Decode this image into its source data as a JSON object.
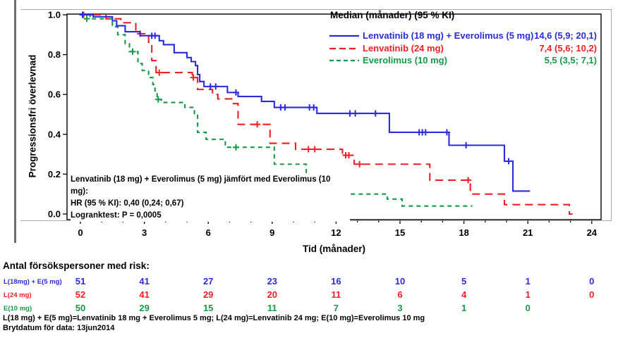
{
  "colors": {
    "blue": "#2b2bd9",
    "red": "#ee2024",
    "green": "#16994a",
    "axis": "#000000",
    "border_gray": "#a9a9a9",
    "left_bar_gray": "#6f6f6f"
  },
  "legend": {
    "title": "Median (månader) (95 % KI)",
    "entries": [
      {
        "label": "Lenvatinib (18 mg) + Everolimus (5 mg)",
        "value": "14,6 (5,9; 20,1)",
        "color": "blue",
        "dash": ""
      },
      {
        "label": "Lenvatinib (24 mg)",
        "value": "7,4 (5,6; 10,2)",
        "color": "red",
        "dash": "9,5"
      },
      {
        "label": "Everolimus (10 mg)",
        "value": "5,5 (3,5; 7,1)",
        "color": "green",
        "dash": "6,4"
      }
    ]
  },
  "annotation": {
    "line1": "Lenvatinib (18  mg) + Everolimus (5  mg) jämfört med Everolimus (10  mg):",
    "line2": "HR (95  % KI): 0,40 (0,24; 0,67)",
    "line3": "Logranktest: P = 0,0005"
  },
  "axes": {
    "x_label": "Tid (månader)",
    "y_label": "Progressionsfri överlevnad",
    "x_ticks": [
      "0",
      "3",
      "6",
      "9",
      "12",
      "15",
      "18",
      "21",
      "24"
    ],
    "y_ticks": [
      "0.0",
      "0.2",
      "0.4",
      "0.6",
      "0.8",
      "1.0"
    ],
    "xlim": [
      0,
      24
    ],
    "ylim": [
      0,
      1
    ]
  },
  "chart_data": {
    "type": "line",
    "subtype": "kaplan-meier-step",
    "title": "Median (månader) (95 % KI)",
    "xlabel": "Tid (månader)",
    "ylabel": "Progressionsfri överlevnad",
    "xlim": [
      0,
      24
    ],
    "ylim": [
      0,
      1
    ],
    "grid": false,
    "series": [
      {
        "name": "Everolimus (10 mg)",
        "median_months": 5.5,
        "ci95": "3,5; 7,1",
        "color": "green",
        "dash": "6,5",
        "points": [
          [
            0,
            1.0
          ],
          [
            0.45,
            0.98
          ],
          [
            1.5,
            0.94
          ],
          [
            1.75,
            0.9
          ],
          [
            2.1,
            0.855
          ],
          [
            2.3,
            0.815
          ],
          [
            2.7,
            0.755
          ],
          [
            2.9,
            0.72
          ],
          [
            3.2,
            0.685
          ],
          [
            3.4,
            0.65
          ],
          [
            3.5,
            0.61
          ],
          [
            3.6,
            0.575
          ],
          [
            3.8,
            0.56
          ],
          [
            4.9,
            0.535
          ],
          [
            5.35,
            0.5
          ],
          [
            5.5,
            0.41
          ],
          [
            5.9,
            0.375
          ],
          [
            6.8,
            0.335
          ],
          [
            9.1,
            0.25
          ],
          [
            10.6,
            0.19
          ],
          [
            12.6,
            0.1
          ],
          [
            14.4,
            0.075
          ],
          [
            15.1,
            0.04
          ],
          [
            18.4,
            0.04
          ]
        ],
        "censors": [
          [
            0.3,
            0.98
          ],
          [
            2.45,
            0.815
          ],
          [
            3.65,
            0.575
          ],
          [
            7.3,
            0.335
          ]
        ]
      },
      {
        "name": "Lenvatinib (24 mg)",
        "median_months": 7.4,
        "ci95": "5,6; 10,2",
        "color": "red",
        "dash": "11,7",
        "points": [
          [
            0,
            1.0
          ],
          [
            1.2,
            0.98
          ],
          [
            1.9,
            0.96
          ],
          [
            2.6,
            0.905
          ],
          [
            3.2,
            0.862
          ],
          [
            3.35,
            0.77
          ],
          [
            3.55,
            0.71
          ],
          [
            5.25,
            0.685
          ],
          [
            5.5,
            0.625
          ],
          [
            6.2,
            0.6
          ],
          [
            6.45,
            0.578
          ],
          [
            7.1,
            0.554
          ],
          [
            7.4,
            0.45
          ],
          [
            8.9,
            0.355
          ],
          [
            10.1,
            0.325
          ],
          [
            12.3,
            0.295
          ],
          [
            12.85,
            0.25
          ],
          [
            16.4,
            0.17
          ],
          [
            18.3,
            0.1
          ],
          [
            19.9,
            0.047
          ],
          [
            22.95,
            0.0
          ],
          [
            23.1,
            0.0
          ]
        ],
        "censors": [
          [
            0.15,
            1.0
          ],
          [
            2.8,
            0.905
          ],
          [
            3.7,
            0.71
          ],
          [
            5.3,
            0.685
          ],
          [
            8.3,
            0.45
          ],
          [
            10.7,
            0.325
          ],
          [
            11.0,
            0.325
          ],
          [
            12.45,
            0.295
          ],
          [
            12.6,
            0.295
          ],
          [
            13.1,
            0.25
          ],
          [
            18.2,
            0.17
          ]
        ]
      },
      {
        "name": "Lenvatinib (18 mg) + Everolimus (5 mg)",
        "median_months": 14.6,
        "ci95": "5,9; 20,1",
        "color": "blue",
        "dash": "",
        "points": [
          [
            0,
            1.0
          ],
          [
            0.6,
            0.99
          ],
          [
            1.5,
            0.97
          ],
          [
            1.7,
            0.945
          ],
          [
            2.1,
            0.915
          ],
          [
            2.8,
            0.895
          ],
          [
            3.7,
            0.87
          ],
          [
            3.9,
            0.85
          ],
          [
            4.4,
            0.81
          ],
          [
            5.0,
            0.785
          ],
          [
            5.2,
            0.765
          ],
          [
            5.4,
            0.745
          ],
          [
            5.5,
            0.7
          ],
          [
            5.6,
            0.665
          ],
          [
            5.8,
            0.64
          ],
          [
            6.9,
            0.61
          ],
          [
            7.4,
            0.59
          ],
          [
            8.5,
            0.565
          ],
          [
            9.1,
            0.535
          ],
          [
            11.1,
            0.505
          ],
          [
            14.5,
            0.41
          ],
          [
            17.3,
            0.345
          ],
          [
            19.9,
            0.265
          ],
          [
            20.3,
            0.115
          ],
          [
            21.1,
            0.115
          ]
        ],
        "censors": [
          [
            0.1,
            1.0
          ],
          [
            3.35,
            0.895
          ],
          [
            3.5,
            0.895
          ],
          [
            6.1,
            0.64
          ],
          [
            6.35,
            0.64
          ],
          [
            7.3,
            0.61
          ],
          [
            9.4,
            0.535
          ],
          [
            9.6,
            0.535
          ],
          [
            10.75,
            0.535
          ],
          [
            10.95,
            0.535
          ],
          [
            12.65,
            0.505
          ],
          [
            12.9,
            0.505
          ],
          [
            13.85,
            0.505
          ],
          [
            15.9,
            0.41
          ],
          [
            16.05,
            0.41
          ],
          [
            16.2,
            0.41
          ],
          [
            17.2,
            0.41
          ],
          [
            18.1,
            0.345
          ],
          [
            20.1,
            0.265
          ]
        ]
      }
    ]
  },
  "risk_table": {
    "header": "Antal försökspersoner med risk:",
    "time_points": [
      0,
      3,
      6,
      9,
      12,
      15,
      18,
      21,
      24
    ],
    "rows": [
      {
        "label": "L(18mg) + E(5 mg)",
        "color": "blue",
        "counts": [
          51,
          41,
          27,
          23,
          16,
          10,
          5,
          1,
          0
        ]
      },
      {
        "label": "L(24 mg)",
        "color": "red",
        "counts": [
          52,
          41,
          29,
          20,
          11,
          6,
          4,
          1,
          0
        ]
      },
      {
        "label": "E(10 mg)",
        "color": "green",
        "counts": [
          50,
          29,
          15,
          11,
          7,
          3,
          1,
          0
        ]
      }
    ]
  },
  "footnotes": {
    "line1": "L(18  mg) + E(5  mg)=Lenvatinib 18  mg + Everolimus 5  mg; L(24  mg)=Lenvatinib 24  mg; E(10  mg)=Everolimus 10  mg",
    "line2": "Brytdatum för data: 13jun2014"
  }
}
